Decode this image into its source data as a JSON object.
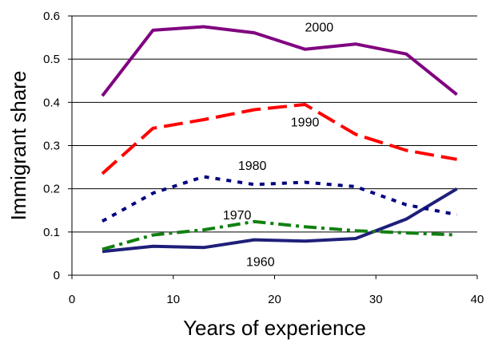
{
  "chart_data": {
    "type": "line",
    "title": "",
    "xlabel": "Years of experience",
    "ylabel": "Immigrant share",
    "xlim": [
      0,
      40
    ],
    "ylim": [
      0,
      0.6
    ],
    "x_ticks": [
      0,
      10,
      20,
      30,
      40
    ],
    "y_ticks": [
      0,
      0.1,
      0.2,
      0.3,
      0.4,
      0.5,
      0.6
    ],
    "x_tick_labels": [
      "0",
      "10",
      "20",
      "30",
      "40"
    ],
    "y_tick_labels": [
      "0",
      "0.1",
      "0.2",
      "0.3",
      "0.4",
      "0.5",
      "0.6"
    ],
    "grid": "horizontal",
    "legend": "none (labels placed next to lines)",
    "x": [
      3,
      8,
      13,
      18,
      23,
      28,
      33,
      38
    ],
    "series": [
      {
        "name": "1960",
        "color": "#1F1F7A",
        "style": "solid",
        "values": [
          0.055,
          0.067,
          0.064,
          0.082,
          0.079,
          0.085,
          0.13,
          0.2
        ]
      },
      {
        "name": "1970",
        "color": "#118011",
        "style": "dash-dot",
        "values": [
          0.06,
          0.093,
          0.105,
          0.124,
          0.112,
          0.103,
          0.098,
          0.093
        ]
      },
      {
        "name": "1980",
        "color": "#000080",
        "style": "dotted",
        "values": [
          0.125,
          0.19,
          0.228,
          0.21,
          0.215,
          0.205,
          0.163,
          0.14
        ]
      },
      {
        "name": "1990",
        "color": "#FF0000",
        "style": "long-dash",
        "values": [
          0.235,
          0.34,
          0.36,
          0.383,
          0.395,
          0.326,
          0.289,
          0.268
        ]
      },
      {
        "name": "2000",
        "color": "#800080",
        "style": "solid",
        "values": [
          0.415,
          0.567,
          0.575,
          0.561,
          0.523,
          0.535,
          0.512,
          0.418
        ]
      }
    ]
  }
}
